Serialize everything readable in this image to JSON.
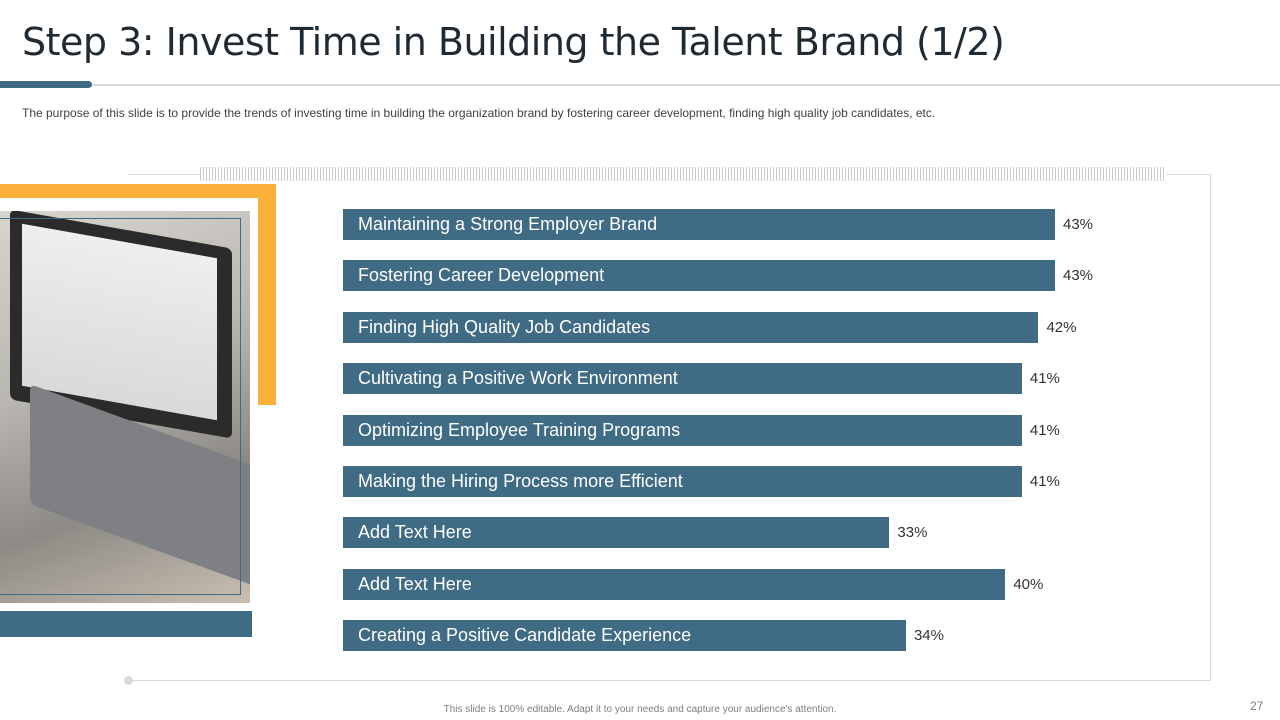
{
  "slide": {
    "title": "Step 3: Invest Time in Building the Talent Brand (1/2)",
    "subtitle": "The purpose of this slide is to provide the trends of investing time in building the organization brand by fostering career development, finding high quality job candidates, etc.",
    "footer": "This slide is 100% editable. Adapt it to your needs and capture your audience's attention.",
    "page_number": "27"
  },
  "colors": {
    "bar": "#3f6b84",
    "accent": "#fbb03b"
  },
  "chart_data": {
    "type": "bar",
    "orientation": "horizontal",
    "title": "",
    "xlabel": "",
    "ylabel": "",
    "xlim": [
      0,
      43
    ],
    "categories": [
      "Maintaining a Strong Employer Brand",
      "Fostering Career Development",
      "Finding High Quality Job Candidates",
      "Cultivating a Positive Work Environment",
      "Optimizing Employee Training Programs",
      "Making the Hiring Process more Efficient",
      "Add Text Here",
      "Add Text Here",
      "Creating a Positive Candidate Experience"
    ],
    "values": [
      43,
      43,
      42,
      41,
      41,
      41,
      33,
      40,
      34
    ],
    "value_labels": [
      "43%",
      "43%",
      "42%",
      "41%",
      "41%",
      "41%",
      "33%",
      "40%",
      "34%"
    ]
  }
}
